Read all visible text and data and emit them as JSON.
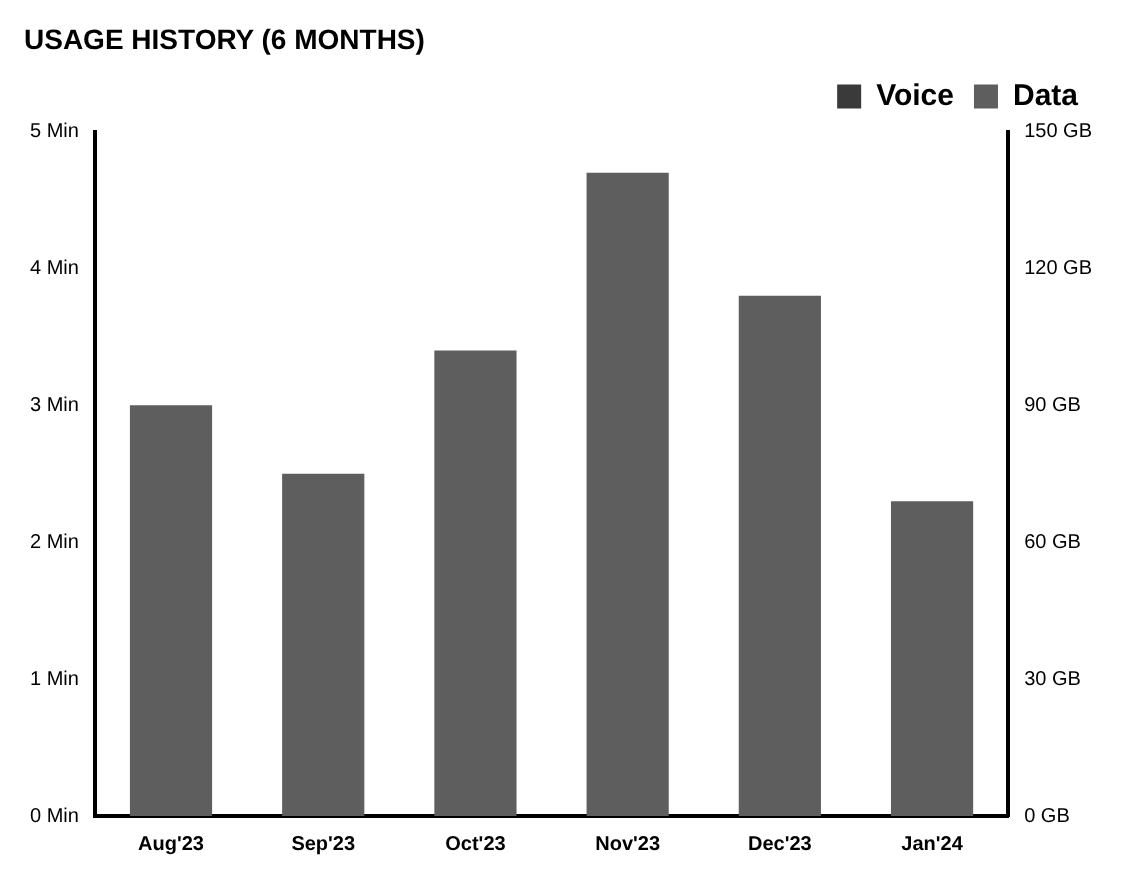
{
  "chart_data": {
    "type": "bar",
    "title": "USAGE HISTORY (6 MONTHS)",
    "categories": [
      "Aug'23",
      "Sep'23",
      "Oct'23",
      "Nov'23",
      "Dec'23",
      "Jan'24"
    ],
    "series": [
      {
        "name": "Voice",
        "color": "#3a3a3a",
        "values": [
          null,
          null,
          null,
          null,
          null,
          null
        ]
      },
      {
        "name": "Data",
        "color": "#5e5e5e",
        "axis": "y2",
        "values": [
          90,
          75,
          102,
          141,
          114,
          69
        ]
      }
    ],
    "ylim": [
      0,
      5
    ],
    "yticks": [
      {
        "value": 0,
        "label": "0 Min"
      },
      {
        "value": 1,
        "label": "1 Min"
      },
      {
        "value": 2,
        "label": "2 Min"
      },
      {
        "value": 3,
        "label": "3 Min"
      },
      {
        "value": 4,
        "label": "4 Min"
      },
      {
        "value": 5,
        "label": "5 Min"
      }
    ],
    "y2lim": [
      0,
      150
    ],
    "y2ticks": [
      {
        "value": 0,
        "label": "0 GB"
      },
      {
        "value": 30,
        "label": "30 GB"
      },
      {
        "value": 60,
        "label": "60 GB"
      },
      {
        "value": 90,
        "label": "90 GB"
      },
      {
        "value": 120,
        "label": "120 GB"
      },
      {
        "value": 150,
        "label": "150 GB"
      }
    ],
    "grid": false,
    "legend": "top right"
  }
}
